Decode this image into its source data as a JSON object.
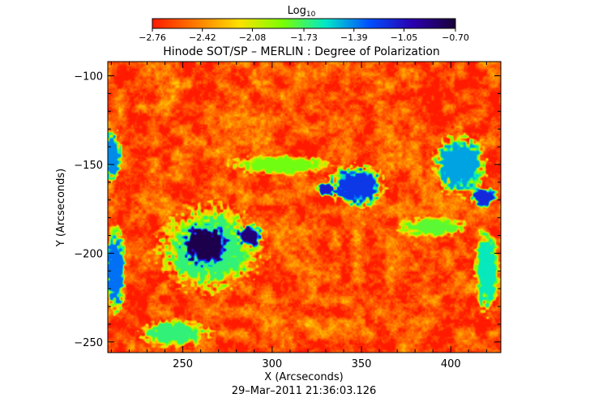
{
  "chart_data": {
    "type": "heatmap",
    "title": "Hinode SOT/SP – MERLIN : Degree of Polarization",
    "xlabel": "X (Arcseconds)",
    "ylabel": "Y (Arcseconds)",
    "timestamp": "29–Mar–2011 21:36:03.126",
    "xlim": [
      208,
      428
    ],
    "ylim": [
      -256,
      -92
    ],
    "xticks": [
      250,
      300,
      350,
      400
    ],
    "xtick_labels": [
      "250",
      "300",
      "350",
      "400"
    ],
    "yticks": [
      -100,
      -150,
      -200,
      -250
    ],
    "ytick_labels": [
      "−100",
      "−150",
      "−200",
      "−250"
    ],
    "colorbar": {
      "label_main": "Log",
      "label_sub": "10",
      "range": [
        -2.76,
        -0.7
      ],
      "ticks": [
        -2.76,
        -2.42,
        -2.08,
        -1.73,
        -1.39,
        -1.05,
        -0.7
      ],
      "tick_labels": [
        "−2.76",
        "−2.42",
        "−2.08",
        "−1.73",
        "−1.39",
        "−1.05",
        "−0.70"
      ],
      "colors": [
        "#ff1a00",
        "#ff7a00",
        "#ffe000",
        "#7cff00",
        "#00e8c8",
        "#0050ff",
        "#2a00b0",
        "#1a0038"
      ]
    },
    "background_level": -2.6,
    "features": [
      {
        "name": "sunspot umbra",
        "x": 262,
        "y": -195,
        "rx": 15,
        "ry": 13,
        "level": -0.75
      },
      {
        "name": "pore",
        "x": 287,
        "y": -190,
        "rx": 8,
        "ry": 7,
        "level": -0.85
      },
      {
        "name": "penumbra",
        "x": 265,
        "y": -197,
        "rx": 29,
        "ry": 25,
        "level": -1.7
      },
      {
        "name": "plage",
        "x": 347,
        "y": -162,
        "rx": 16,
        "ry": 12,
        "level": -1.2
      },
      {
        "name": "plage",
        "x": 330,
        "y": -164,
        "rx": 6,
        "ry": 4,
        "level": -1.1
      },
      {
        "name": "plage",
        "x": 405,
        "y": -150,
        "rx": 15,
        "ry": 18,
        "level": -1.45
      },
      {
        "name": "plage",
        "x": 418,
        "y": -168,
        "rx": 8,
        "ry": 6,
        "level": -1.15
      },
      {
        "name": "network",
        "x": 212,
        "y": -210,
        "rx": 6,
        "ry": 25,
        "level": -1.35
      },
      {
        "name": "network",
        "x": 210,
        "y": -145,
        "rx": 6,
        "ry": 15,
        "level": -1.4
      },
      {
        "name": "network",
        "x": 245,
        "y": -245,
        "rx": 20,
        "ry": 8,
        "level": -1.7
      },
      {
        "name": "network",
        "x": 305,
        "y": -150,
        "rx": 30,
        "ry": 6,
        "level": -1.85
      },
      {
        "name": "network",
        "x": 420,
        "y": -210,
        "rx": 7,
        "ry": 25,
        "level": -1.6
      },
      {
        "name": "network",
        "x": 390,
        "y": -185,
        "rx": 20,
        "ry": 6,
        "level": -1.8
      }
    ]
  }
}
